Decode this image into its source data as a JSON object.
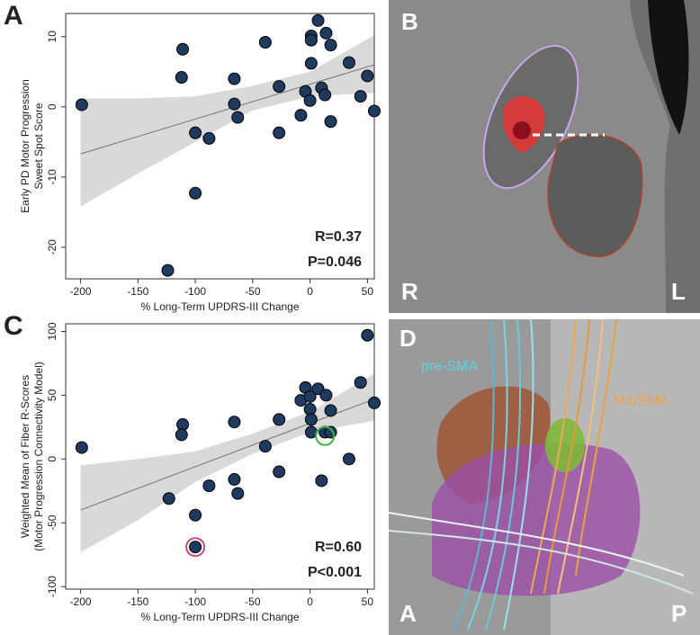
{
  "chart_data": [
    {
      "type": "scatter",
      "panel": "A",
      "ylabel": [
        "Early PD Motor Progression",
        "Sweet Spot Score"
      ],
      "xlabel": "% Long-Term UPDRS-III Change",
      "annotations": [
        "R=0.37",
        "P=0.046"
      ],
      "xlim": [
        -213,
        56
      ],
      "ylim": [
        -24.5,
        13.3
      ],
      "xticks": [
        -200,
        -150,
        -100,
        -50,
        0,
        50
      ],
      "yticks": [
        -20,
        -10,
        0,
        10
      ],
      "color": "#1f3a5f",
      "x": [
        -199,
        -111,
        -112,
        -100,
        -88,
        -100,
        -124,
        -66,
        -66,
        -63,
        -39,
        -27,
        -27,
        -8,
        -4,
        0,
        1,
        1,
        1,
        7,
        10,
        13,
        14,
        18,
        18,
        34,
        44,
        50,
        56
      ],
      "y": [
        0.3,
        8.2,
        4.2,
        -3.7,
        -4.5,
        -12.3,
        -23.3,
        4.0,
        0.4,
        -1.5,
        9.2,
        2.9,
        -3.7,
        -1.2,
        2.2,
        0.9,
        10.1,
        9.5,
        6.2,
        12.3,
        2.7,
        1.7,
        10.5,
        8.8,
        -2.1,
        6.3,
        1.5,
        4.4,
        -0.6
      ],
      "fit": {
        "x": [
          -200,
          56
        ],
        "y": [
          -6.7,
          6.0
        ]
      },
      "band": {
        "x": [
          -200,
          -150,
          -100,
          -50,
          0,
          56
        ],
        "upper": [
          1.2,
          1.2,
          1.5,
          3.0,
          5.0,
          10.2
        ],
        "lower": [
          -14.2,
          -9.5,
          -5.0,
          -0.5,
          1.5,
          2.0
        ]
      }
    },
    {
      "type": "scatter",
      "panel": "C",
      "ylabel": [
        "Weighted Mean of Fiber R-Scores",
        "(Motor Progression Connectivity Model)"
      ],
      "xlabel": "% Long-Term UPDRS-III Change",
      "annotations": [
        "R=0.60",
        "P<0.001"
      ],
      "xlim": [
        -213,
        56
      ],
      "ylim": [
        -102,
        106
      ],
      "xticks": [
        -200,
        -150,
        -100,
        -50,
        0,
        50
      ],
      "yticks": [
        -100,
        -50,
        0,
        50,
        100
      ],
      "color": "#1f3a5f",
      "x": [
        -199,
        -123,
        -111,
        -112,
        -100,
        -100,
        -88,
        -66,
        -66,
        -63,
        -39,
        -27,
        -27,
        -8,
        -4,
        0,
        0,
        1,
        1,
        7,
        10,
        13,
        14,
        18,
        18,
        34,
        44,
        50,
        56
      ],
      "y": [
        9,
        -31,
        27,
        19,
        -44,
        -69,
        -21,
        29,
        -16,
        -27,
        10,
        31,
        -10,
        46,
        56,
        49,
        39,
        31,
        21,
        55,
        -17,
        21,
        50,
        38,
        21,
        0,
        60,
        97,
        44
      ],
      "fit": {
        "x": [
          -200,
          56
        ],
        "y": [
          -40,
          47
        ]
      },
      "band": {
        "x": [
          -200,
          -150,
          -100,
          -50,
          0,
          56
        ],
        "upper": [
          -5,
          0,
          6,
          20,
          37,
          67
        ],
        "lower": [
          -73,
          -48,
          -18,
          4,
          21,
          30
        ]
      },
      "highlights": [
        {
          "x": 13,
          "y": 18,
          "color": "#3cb43c"
        },
        {
          "x": -100,
          "y": -69,
          "color": "#c8506e"
        }
      ]
    }
  ],
  "image_panels": [
    {
      "label": "B",
      "orientation": [
        "R",
        "L"
      ]
    },
    {
      "label": "D",
      "tracts": [
        "pre-SMA",
        "M1/SMA"
      ],
      "orientation": [
        "A",
        "P"
      ]
    }
  ]
}
